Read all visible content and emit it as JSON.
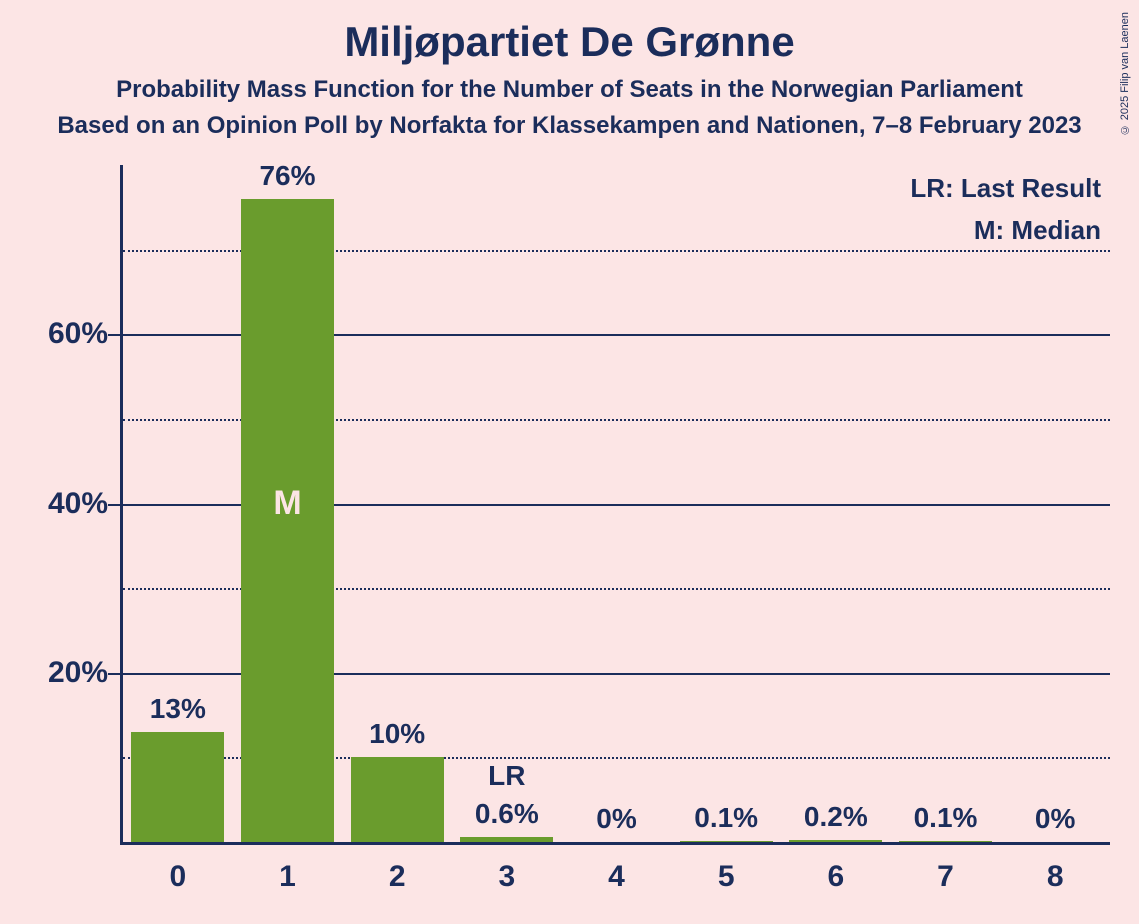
{
  "title": "Miljøpartiet De Grønne",
  "subtitle": "Probability Mass Function for the Number of Seats in the Norwegian Parliament",
  "subtitle2": "Based on an Opinion Poll by Norfakta for Klassekampen and Nationen, 7–8 February 2023",
  "legend_lr": "LR: Last Result",
  "legend_m": "M: Median",
  "copyright": "© 2025 Filip van Laenen",
  "chart": {
    "type": "bar",
    "background_color": "#fce5e5",
    "bar_color": "#6a9c2d",
    "axis_color": "#1b2d5b",
    "text_color": "#1b2d5b",
    "m_text_color": "#fce5e5",
    "ymax_percent": 80,
    "y_major_ticks": [
      20,
      40,
      60
    ],
    "y_minor_ticks": [
      10,
      30,
      50,
      70
    ],
    "categories": [
      "0",
      "1",
      "2",
      "3",
      "4",
      "5",
      "6",
      "7",
      "8"
    ],
    "values": [
      13,
      76,
      10,
      0.6,
      0,
      0.1,
      0.2,
      0.1,
      0
    ],
    "value_labels": [
      "13%",
      "76%",
      "10%",
      "0.6%",
      "0%",
      "0.1%",
      "0.2%",
      "0.1%",
      "0%"
    ],
    "median_index": 1,
    "median_label": "M",
    "lr_index": 3,
    "lr_label": "LR",
    "y_label_suffix": "%",
    "bar_width_ratio": 0.85,
    "title_fontsize": 42,
    "subtitle_fontsize": 24,
    "axis_label_fontsize": 30,
    "bar_label_fontsize": 28
  }
}
